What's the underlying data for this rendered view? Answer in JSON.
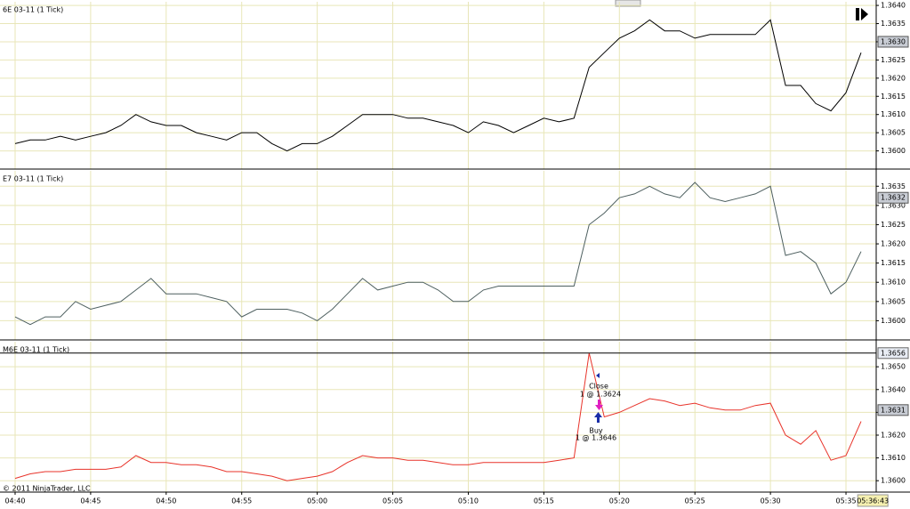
{
  "chart_data": [
    {
      "type": "line",
      "title": "6E 03-11 (1 Tick)",
      "color": "#000000",
      "x": [
        "04:40",
        "04:41",
        "04:42",
        "04:43",
        "04:44",
        "04:45",
        "04:46",
        "04:47",
        "04:48",
        "04:49",
        "04:50",
        "04:51",
        "04:52",
        "04:53",
        "04:54",
        "04:55",
        "04:56",
        "04:57",
        "04:58",
        "04:59",
        "05:00",
        "05:01",
        "05:02",
        "05:03",
        "05:04",
        "05:05",
        "05:06",
        "05:07",
        "05:08",
        "05:09",
        "05:10",
        "05:11",
        "05:12",
        "05:13",
        "05:14",
        "05:15",
        "05:16",
        "05:17",
        "05:18",
        "05:19",
        "05:20",
        "05:21",
        "05:22",
        "05:23",
        "05:24",
        "05:25",
        "05:26",
        "05:27",
        "05:28",
        "05:29",
        "05:30",
        "05:31",
        "05:32",
        "05:33",
        "05:34",
        "05:35",
        "05:36"
      ],
      "values": [
        1.3602,
        1.3603,
        1.3603,
        1.3604,
        1.3603,
        1.3604,
        1.3605,
        1.3607,
        1.361,
        1.3608,
        1.3607,
        1.3607,
        1.3605,
        1.3604,
        1.3603,
        1.3605,
        1.3605,
        1.3602,
        1.36,
        1.3602,
        1.3602,
        1.3604,
        1.3607,
        1.361,
        1.361,
        1.361,
        1.3609,
        1.3609,
        1.3608,
        1.3607,
        1.3605,
        1.3608,
        1.3607,
        1.3605,
        1.3607,
        1.3609,
        1.3608,
        1.3609,
        1.3623,
        1.3627,
        1.3631,
        1.3633,
        1.3636,
        1.3633,
        1.3633,
        1.3631,
        1.3632,
        1.3632,
        1.3632,
        1.3632,
        1.3636,
        1.3618,
        1.3618,
        1.3613,
        1.3611,
        1.3616,
        1.3627
      ],
      "xlim": [
        "04:39",
        "05:37"
      ],
      "xticks": [
        "04:40",
        "04:45",
        "04:50",
        "04:55",
        "05:00",
        "05:05",
        "05:10",
        "05:15",
        "05:20",
        "05:25",
        "05:30",
        "05:35"
      ],
      "ylim": [
        1.3595,
        1.3641
      ],
      "yticks": [
        {
          "value": 1.36,
          "label": "1.3600"
        },
        {
          "value": 1.3605,
          "label": "1.3605"
        },
        {
          "value": 1.361,
          "label": "1.3610"
        },
        {
          "value": 1.3615,
          "label": "1.3615"
        },
        {
          "value": 1.362,
          "label": "1.3620"
        },
        {
          "value": 1.3625,
          "label": "1.3625"
        },
        {
          "value": 1.363,
          "label": "1.3630"
        },
        {
          "value": 1.3635,
          "label": "1.3635"
        },
        {
          "value": 1.364,
          "label": "1.3640"
        }
      ],
      "last_price": {
        "value": 1.363,
        "label": "1.3630"
      },
      "grid": true
    },
    {
      "type": "line",
      "title": "E7 03-11 (1 Tick)",
      "color": "#4d5f5f",
      "x": [
        "04:40",
        "04:41",
        "04:42",
        "04:43",
        "04:44",
        "04:45",
        "04:46",
        "04:47",
        "04:48",
        "04:49",
        "04:50",
        "04:51",
        "04:52",
        "04:53",
        "04:54",
        "04:55",
        "04:56",
        "04:57",
        "04:58",
        "04:59",
        "05:00",
        "05:01",
        "05:02",
        "05:03",
        "05:04",
        "05:05",
        "05:06",
        "05:07",
        "05:08",
        "05:09",
        "05:10",
        "05:11",
        "05:12",
        "05:13",
        "05:14",
        "05:15",
        "05:16",
        "05:17",
        "05:18",
        "05:19",
        "05:20",
        "05:21",
        "05:22",
        "05:23",
        "05:24",
        "05:25",
        "05:26",
        "05:27",
        "05:28",
        "05:29",
        "05:30",
        "05:31",
        "05:32",
        "05:33",
        "05:34",
        "05:35",
        "05:36"
      ],
      "values": [
        1.3601,
        1.3599,
        1.3601,
        1.3601,
        1.3605,
        1.3603,
        1.3604,
        1.3605,
        1.3608,
        1.3611,
        1.3607,
        1.3607,
        1.3607,
        1.3606,
        1.3605,
        1.3601,
        1.3603,
        1.3603,
        1.3603,
        1.3602,
        1.36,
        1.3603,
        1.3607,
        1.3611,
        1.3608,
        1.3609,
        1.361,
        1.361,
        1.3608,
        1.3605,
        1.3605,
        1.3608,
        1.3609,
        1.3609,
        1.3609,
        1.3609,
        1.3609,
        1.3609,
        1.3625,
        1.3628,
        1.3632,
        1.3633,
        1.3635,
        1.3633,
        1.3632,
        1.3636,
        1.3632,
        1.3631,
        1.3632,
        1.3633,
        1.3635,
        1.3617,
        1.3618,
        1.3615,
        1.3607,
        1.361,
        1.3618
      ],
      "xlim": [
        "04:39",
        "05:37"
      ],
      "xticks": [
        "04:40",
        "04:45",
        "04:50",
        "04:55",
        "05:00",
        "05:05",
        "05:10",
        "05:15",
        "05:20",
        "05:25",
        "05:30",
        "05:35"
      ],
      "ylim": [
        1.3595,
        1.3639
      ],
      "yticks": [
        {
          "value": 1.36,
          "label": "1.3600"
        },
        {
          "value": 1.3605,
          "label": "1.3605"
        },
        {
          "value": 1.361,
          "label": "1.3610"
        },
        {
          "value": 1.3615,
          "label": "1.3615"
        },
        {
          "value": 1.362,
          "label": "1.3620"
        },
        {
          "value": 1.3625,
          "label": "1.3625"
        },
        {
          "value": 1.363,
          "label": "1.3630"
        },
        {
          "value": 1.3635,
          "label": "1.3635"
        }
      ],
      "last_price": {
        "value": 1.3632,
        "label": "1.3632"
      },
      "grid": true
    },
    {
      "type": "line",
      "title": "M6E 03-11 (1 Tick)",
      "color": "#e8332a",
      "x": [
        "04:40",
        "04:41",
        "04:42",
        "04:43",
        "04:44",
        "04:45",
        "04:46",
        "04:47",
        "04:48",
        "04:49",
        "04:50",
        "04:51",
        "04:52",
        "04:53",
        "04:54",
        "04:55",
        "04:56",
        "04:57",
        "04:58",
        "04:59",
        "05:00",
        "05:01",
        "05:02",
        "05:03",
        "05:04",
        "05:05",
        "05:06",
        "05:07",
        "05:08",
        "05:09",
        "05:10",
        "05:11",
        "05:12",
        "05:13",
        "05:14",
        "05:15",
        "05:16",
        "05:17",
        "05:18",
        "05:19",
        "05:20",
        "05:21",
        "05:22",
        "05:23",
        "05:24",
        "05:25",
        "05:26",
        "05:27",
        "05:28",
        "05:29",
        "05:30",
        "05:31",
        "05:32",
        "05:33",
        "05:34",
        "05:35",
        "05:36"
      ],
      "values": [
        1.3601,
        1.3603,
        1.3604,
        1.3604,
        1.3605,
        1.3605,
        1.3605,
        1.3606,
        1.3611,
        1.3608,
        1.3608,
        1.3607,
        1.3607,
        1.3606,
        1.3604,
        1.3604,
        1.3603,
        1.3602,
        1.36,
        1.3601,
        1.3602,
        1.3604,
        1.3608,
        1.3611,
        1.361,
        1.361,
        1.3609,
        1.3609,
        1.3608,
        1.3607,
        1.3607,
        1.3608,
        1.3608,
        1.3608,
        1.3608,
        1.3608,
        1.3609,
        1.361,
        1.3656,
        1.3628,
        1.363,
        1.3633,
        1.3636,
        1.3635,
        1.3633,
        1.3634,
        1.3632,
        1.3631,
        1.3631,
        1.3633,
        1.3634,
        1.362,
        1.3616,
        1.3622,
        1.3609,
        1.3611,
        1.3626
      ],
      "xlim": [
        "04:39",
        "05:37"
      ],
      "xticks": [
        "04:40",
        "04:45",
        "04:50",
        "04:55",
        "05:00",
        "05:05",
        "05:10",
        "05:15",
        "05:20",
        "05:25",
        "05:30",
        "05:35"
      ],
      "ylim": [
        1.3595,
        1.3661
      ],
      "yticks": [
        {
          "value": 1.36,
          "label": "1.3600"
        },
        {
          "value": 1.361,
          "label": "1.3610"
        },
        {
          "value": 1.362,
          "label": "1.3620"
        },
        {
          "value": 1.363,
          "label": "1.3630"
        },
        {
          "value": 1.364,
          "label": "1.3640"
        },
        {
          "value": 1.365,
          "label": "1.3650"
        }
      ],
      "last_price": {
        "value": 1.3631,
        "label": "1.3631"
      },
      "high_price": {
        "value": 1.3656,
        "label": "1.3656"
      },
      "annotations": [
        "Close",
        "1 @ 1.3624",
        "Buy",
        "1 @ 1.3646"
      ],
      "current_time": "05:36:43",
      "copyright": "© 2011 NinjaTrader, LLC",
      "grid": true
    }
  ]
}
